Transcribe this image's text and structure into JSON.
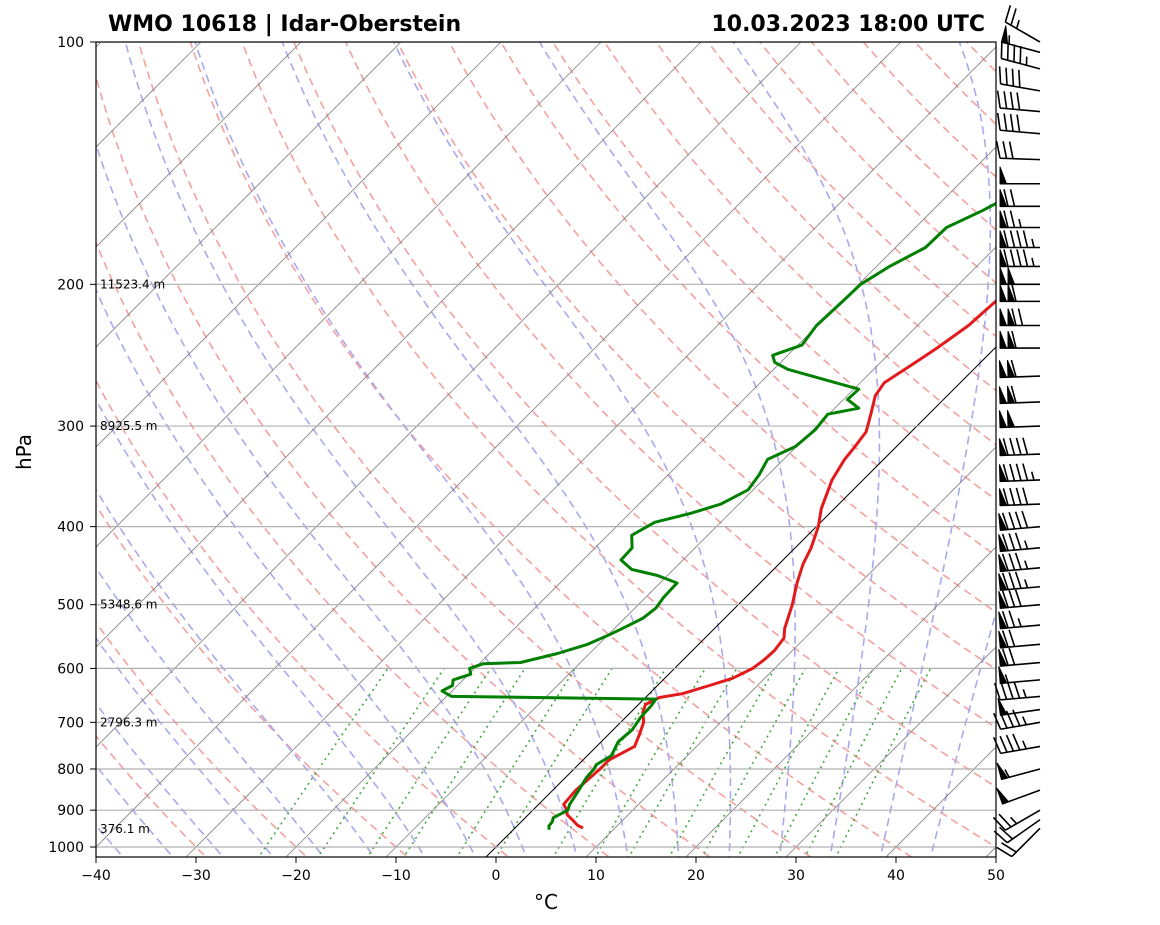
{
  "chart_data": {
    "type": "line",
    "title_left": "WMO 10618 | Idar-Oberstein",
    "title_right": "10.03.2023 18:00 UTC",
    "xlabel": "°C",
    "ylabel": "hPa",
    "xlim": [
      -40,
      50
    ],
    "ylim": [
      1000,
      100
    ],
    "y_scale": "log",
    "grid": true,
    "x_ticks": [
      "−40",
      "−30",
      "−20",
      "−10",
      "0",
      "10",
      "20",
      "30",
      "40",
      "50"
    ],
    "x_tick_values": [
      -40,
      -30,
      -20,
      -10,
      0,
      10,
      20,
      30,
      40,
      50
    ],
    "y_ticks": [
      "100",
      "200",
      "300",
      "400",
      "500",
      "600",
      "700",
      "800",
      "900",
      "1000"
    ],
    "y_tick_values": [
      100,
      200,
      300,
      400,
      500,
      600,
      700,
      800,
      900,
      1000
    ],
    "height_labels": [
      {
        "p": 200,
        "label": "11523.4 m"
      },
      {
        "p": 300,
        "label": "8925.5 m"
      },
      {
        "p": 500,
        "label": "5348.6 m"
      },
      {
        "p": 700,
        "label": "2796.3 m"
      },
      {
        "p": 950,
        "label": "376.1 m"
      }
    ],
    "colors": {
      "temperature": "#e31a1c",
      "dewpoint": "#007f00",
      "dry_adiabats": "#f4a0a0",
      "moist_adiabats": "#a9a9ee",
      "mixing_ratio": "#44a844",
      "isotherms": "#808080",
      "zero_isotherm": "#000000"
    },
    "series": [
      {
        "id": "temperature",
        "points": [
          [
            6.8,
            947
          ],
          [
            6.0,
            940
          ],
          [
            4.9,
            925
          ],
          [
            3.9,
            912
          ],
          [
            3.4,
            900
          ],
          [
            2.5,
            885
          ],
          [
            2.3,
            850
          ],
          [
            2.6,
            800
          ],
          [
            2.6,
            780
          ],
          [
            3.8,
            750
          ],
          [
            3.1,
            725
          ],
          [
            2.3,
            700
          ],
          [
            1.2,
            680
          ],
          [
            0.7,
            665
          ],
          [
            1.4,
            652
          ],
          [
            3.3,
            645
          ],
          [
            5.2,
            630
          ],
          [
            6.8,
            617
          ],
          [
            7.8,
            600
          ],
          [
            8.1,
            585
          ],
          [
            8.2,
            570
          ],
          [
            7.9,
            550
          ],
          [
            7.0,
            535
          ],
          [
            5.4,
            500
          ],
          [
            3.7,
            470
          ],
          [
            2.4,
            445
          ],
          [
            1.6,
            425
          ],
          [
            0.2,
            400
          ],
          [
            -1.3,
            380
          ],
          [
            -3.1,
            350
          ],
          [
            -3.9,
            330
          ],
          [
            -4.1,
            320
          ],
          [
            -4.5,
            305
          ],
          [
            -5.8,
            290
          ],
          [
            -7.2,
            275
          ],
          [
            -7.6,
            265
          ],
          [
            -6.5,
            250
          ],
          [
            -5.8,
            240
          ],
          [
            -4.9,
            225
          ],
          [
            -4.6,
            210
          ],
          [
            -3.9,
            200
          ],
          [
            -2.8,
            190
          ],
          [
            -2.1,
            180
          ],
          [
            -1.3,
            175
          ],
          [
            -0.8,
            165
          ],
          [
            -0.1,
            155
          ],
          [
            0.8,
            148
          ],
          [
            3.3,
            140
          ],
          [
            5.5,
            135
          ],
          [
            5.9,
            130
          ],
          [
            5.9,
            122
          ],
          [
            6.1,
            112
          ],
          [
            6.9,
            106
          ],
          [
            7.4,
            100
          ]
        ]
      },
      {
        "id": "dewpoint",
        "points": [
          [
            3.6,
            952
          ],
          [
            3.2,
            942
          ],
          [
            3.1,
            930
          ],
          [
            2.8,
            920
          ],
          [
            3.5,
            900
          ],
          [
            3.1,
            885
          ],
          [
            2.6,
            850
          ],
          [
            2.1,
            820
          ],
          [
            2.0,
            800
          ],
          [
            1.8,
            790
          ],
          [
            2.4,
            770
          ],
          [
            1.7,
            740
          ],
          [
            1.9,
            715
          ],
          [
            1.5,
            690
          ],
          [
            1.4,
            668
          ],
          [
            1.2,
            655
          ],
          [
            -19.5,
            650
          ],
          [
            -21.0,
            640
          ],
          [
            -20.5,
            630
          ],
          [
            -21.0,
            620
          ],
          [
            -19.8,
            610
          ],
          [
            -20.5,
            600
          ],
          [
            -19.6,
            592
          ],
          [
            -16.0,
            590
          ],
          [
            -13.2,
            575
          ],
          [
            -11.1,
            560
          ],
          [
            -9.9,
            545
          ],
          [
            -9.2,
            535
          ],
          [
            -8.2,
            520
          ],
          [
            -7.9,
            505
          ],
          [
            -8.2,
            490
          ],
          [
            -8.3,
            470
          ],
          [
            -11.0,
            460
          ],
          [
            -14.2,
            452
          ],
          [
            -16.2,
            440
          ],
          [
            -16.3,
            425
          ],
          [
            -17.6,
            410
          ],
          [
            -16.6,
            395
          ],
          [
            -13.9,
            385
          ],
          [
            -11.8,
            375
          ],
          [
            -10.5,
            360
          ],
          [
            -10.9,
            345
          ],
          [
            -11.6,
            330
          ],
          [
            -10.1,
            318
          ],
          [
            -9.8,
            303
          ],
          [
            -10.1,
            290
          ],
          [
            -7.6,
            285
          ],
          [
            -9.6,
            278
          ],
          [
            -9.5,
            270
          ],
          [
            -18.6,
            255
          ],
          [
            -20.6,
            250
          ],
          [
            -21.5,
            245
          ],
          [
            -19.6,
            238
          ],
          [
            -20.1,
            225
          ],
          [
            -19.9,
            210
          ],
          [
            -19.8,
            200
          ],
          [
            -18.7,
            190
          ],
          [
            -17.0,
            180
          ],
          [
            -16.9,
            170
          ],
          [
            -15.0,
            162
          ],
          [
            -13.4,
            154
          ],
          [
            -11.8,
            146
          ],
          [
            -9.8,
            140
          ],
          [
            -9.8,
            133
          ],
          [
            -8.8,
            125
          ],
          [
            -8.0,
            120
          ],
          [
            -7.2,
            112
          ],
          [
            -6.7,
            106
          ],
          [
            -5.0,
            102
          ],
          [
            -3.3,
            100
          ]
        ]
      }
    ],
    "wind_barbs": [
      {
        "p": 948,
        "dir": 225,
        "speed_kt": 20
      },
      {
        "p": 925,
        "dir": 235,
        "speed_kt": 20
      },
      {
        "p": 900,
        "dir": 240,
        "speed_kt": 25
      },
      {
        "p": 850,
        "dir": 250,
        "speed_kt": 50
      },
      {
        "p": 800,
        "dir": 255,
        "speed_kt": 55
      },
      {
        "p": 750,
        "dir": 260,
        "speed_kt": 45
      },
      {
        "p": 700,
        "dir": 260,
        "speed_kt": 45
      },
      {
        "p": 675,
        "dir": 262,
        "speed_kt": 50
      },
      {
        "p": 650,
        "dir": 265,
        "speed_kt": 45
      },
      {
        "p": 620,
        "dir": 265,
        "speed_kt": 55
      },
      {
        "p": 590,
        "dir": 265,
        "speed_kt": 70
      },
      {
        "p": 560,
        "dir": 265,
        "speed_kt": 70
      },
      {
        "p": 530,
        "dir": 265,
        "speed_kt": 75
      },
      {
        "p": 500,
        "dir": 265,
        "speed_kt": 80
      },
      {
        "p": 475,
        "dir": 265,
        "speed_kt": 85
      },
      {
        "p": 450,
        "dir": 265,
        "speed_kt": 85
      },
      {
        "p": 425,
        "dir": 265,
        "speed_kt": 85
      },
      {
        "p": 400,
        "dir": 265,
        "speed_kt": 90
      },
      {
        "p": 375,
        "dir": 268,
        "speed_kt": 90
      },
      {
        "p": 350,
        "dir": 268,
        "speed_kt": 95
      },
      {
        "p": 325,
        "dir": 268,
        "speed_kt": 90
      },
      {
        "p": 300,
        "dir": 268,
        "speed_kt": 100
      },
      {
        "p": 280,
        "dir": 268,
        "speed_kt": 110
      },
      {
        "p": 260,
        "dir": 268,
        "speed_kt": 110
      },
      {
        "p": 240,
        "dir": 270,
        "speed_kt": 110
      },
      {
        "p": 225,
        "dir": 270,
        "speed_kt": 120
      },
      {
        "p": 210,
        "dir": 270,
        "speed_kt": 110
      },
      {
        "p": 200,
        "dir": 270,
        "speed_kt": 100
      },
      {
        "p": 190,
        "dir": 270,
        "speed_kt": 95
      },
      {
        "p": 180,
        "dir": 270,
        "speed_kt": 95
      },
      {
        "p": 170,
        "dir": 270,
        "speed_kt": 75
      },
      {
        "p": 160,
        "dir": 270,
        "speed_kt": 70
      },
      {
        "p": 150,
        "dir": 270,
        "speed_kt": 50
      },
      {
        "p": 140,
        "dir": 272,
        "speed_kt": 30
      },
      {
        "p": 130,
        "dir": 275,
        "speed_kt": 40
      },
      {
        "p": 122,
        "dir": 275,
        "speed_kt": 40
      },
      {
        "p": 115,
        "dir": 280,
        "speed_kt": 40
      },
      {
        "p": 108,
        "dir": 285,
        "speed_kt": 45
      },
      {
        "p": 103,
        "dir": 285,
        "speed_kt": 55
      },
      {
        "p": 100,
        "dir": 300,
        "speed_kt": 25
      }
    ]
  }
}
